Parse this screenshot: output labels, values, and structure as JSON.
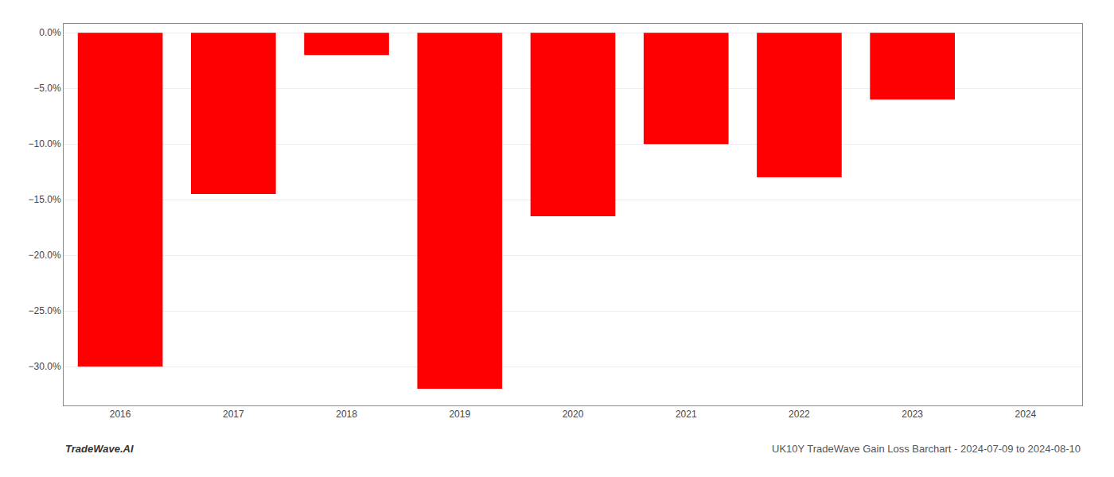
{
  "chart_data": {
    "type": "bar",
    "categories": [
      "2016",
      "2017",
      "2018",
      "2019",
      "2020",
      "2021",
      "2022",
      "2023",
      "2024"
    ],
    "values": [
      -30.0,
      -14.5,
      -2.0,
      -32.0,
      -16.5,
      -10.0,
      -13.0,
      -6.0,
      null
    ],
    "color": "#ff0000",
    "ylim": [
      -33.5,
      0.8
    ],
    "yticks": [
      {
        "value": 0,
        "label": "0.0%"
      },
      {
        "value": -5,
        "label": "−5.0%"
      },
      {
        "value": -10,
        "label": "−10.0%"
      },
      {
        "value": -15,
        "label": "−15.0%"
      },
      {
        "value": -20,
        "label": "−20.0%"
      },
      {
        "value": -25,
        "label": "−25.0%"
      },
      {
        "value": -30,
        "label": "−30.0%"
      }
    ],
    "grid": true,
    "annotations": [
      "TradeWave.AI",
      "UK10Y TradeWave Gain Loss Barchart - 2024-07-09 to 2024-08-10"
    ]
  }
}
